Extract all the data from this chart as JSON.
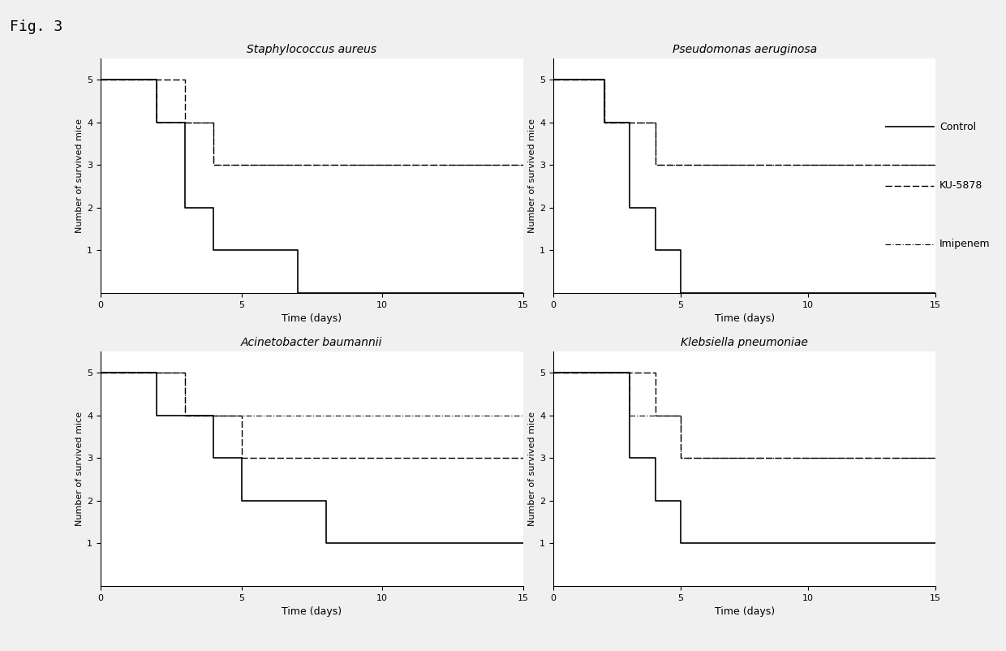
{
  "fig_title": "Fig. 3",
  "subplots": [
    {
      "title": "Staphylococcus aureus",
      "control": {
        "x": [
          0,
          2,
          2,
          3,
          3,
          4,
          4,
          7,
          7,
          15
        ],
        "y": [
          5,
          5,
          4,
          4,
          2,
          2,
          1,
          1,
          0,
          0
        ]
      },
      "ku5878": {
        "x": [
          0,
          3,
          3,
          4,
          4,
          15
        ],
        "y": [
          5,
          5,
          4,
          4,
          3,
          3
        ]
      },
      "imipenem": {
        "x": [
          0,
          2,
          2,
          4,
          4,
          15
        ],
        "y": [
          5,
          5,
          4,
          4,
          3,
          3
        ]
      }
    },
    {
      "title": "Pseudomonas aeruginosa",
      "control": {
        "x": [
          0,
          2,
          2,
          3,
          3,
          4,
          4,
          5,
          5,
          15
        ],
        "y": [
          5,
          5,
          4,
          4,
          2,
          2,
          1,
          1,
          0,
          0
        ]
      },
      "ku5878": {
        "x": [
          0,
          2,
          2,
          4,
          4,
          15
        ],
        "y": [
          5,
          5,
          4,
          4,
          3,
          3
        ]
      },
      "imipenem": {
        "x": [
          0,
          2,
          2,
          4,
          4,
          15
        ],
        "y": [
          5,
          5,
          4,
          4,
          3,
          3
        ]
      }
    },
    {
      "title": "Acinetobacter baumannii",
      "control": {
        "x": [
          0,
          2,
          2,
          4,
          4,
          5,
          5,
          7,
          7,
          8,
          8,
          15
        ],
        "y": [
          5,
          5,
          4,
          4,
          3,
          3,
          2,
          2,
          2,
          2,
          1,
          1
        ]
      },
      "ku5878": {
        "x": [
          0,
          3,
          3,
          5,
          5,
          15
        ],
        "y": [
          5,
          5,
          4,
          4,
          3,
          3
        ]
      },
      "imipenem": {
        "x": [
          0,
          3,
          3,
          4,
          4,
          15
        ],
        "y": [
          5,
          5,
          4,
          4,
          4,
          4
        ]
      }
    },
    {
      "title": "Klebsiella pneumoniae",
      "control": {
        "x": [
          0,
          3,
          3,
          4,
          4,
          5,
          5,
          6,
          6,
          15
        ],
        "y": [
          5,
          5,
          3,
          3,
          2,
          2,
          1,
          1,
          1,
          1
        ]
      },
      "ku5878": {
        "x": [
          0,
          3,
          3,
          4,
          4,
          5,
          5,
          15
        ],
        "y": [
          5,
          5,
          5,
          5,
          4,
          4,
          3,
          3
        ]
      },
      "imipenem": {
        "x": [
          0,
          3,
          3,
          5,
          5,
          15
        ],
        "y": [
          5,
          5,
          4,
          4,
          3,
          3
        ]
      }
    }
  ],
  "xlim": [
    0,
    15
  ],
  "ylim": [
    0,
    5.5
  ],
  "yticks": [
    1,
    2,
    3,
    4,
    5
  ],
  "xticks": [
    0,
    5,
    10,
    15
  ],
  "xlabel": "Time (days)",
  "ylabel": "Number of survived mice",
  "legend_labels": [
    "Control",
    "KU-5878",
    "Imipenem"
  ],
  "control_style": {
    "color": "#000000",
    "lw": 1.2,
    "ls": "-"
  },
  "ku5878_style": {
    "color": "#000000",
    "lw": 1.0,
    "ls": "--",
    "dashes": [
      6,
      2
    ]
  },
  "imipenem_style": {
    "color": "#000000",
    "lw": 0.8,
    "ls": "-.",
    "dashes": [
      6,
      2,
      1,
      2
    ]
  },
  "background_color": "#f0f0f0",
  "fig_bg_color": "#f0f0f0"
}
